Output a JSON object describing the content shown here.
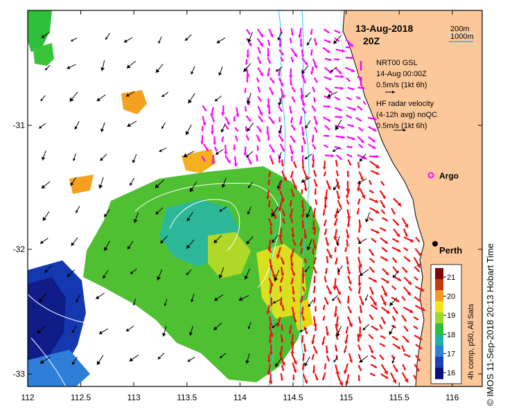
{
  "title": {
    "date": "13-Aug-2018",
    "time": "20Z"
  },
  "depth_legend": {
    "shallow": "200m",
    "deep": "1000m",
    "deep_color": "#20c0c0"
  },
  "glider_legend": {
    "line1": "NRT00 GSL",
    "line2": "14-Aug 00:00Z",
    "line3": "0.5m/s (1kt 6h)",
    "color": "#ff00ff"
  },
  "radar_legend": {
    "line1": "HF radar velocity",
    "line2": "(4-12h avg) noQC",
    "line3": "0.5m/s (1kt 6h)",
    "color": "#ff0000"
  },
  "argo": {
    "label": "Argo",
    "color": "#ff00ff"
  },
  "city": {
    "label": "Perth"
  },
  "colorbar": {
    "label": "4h comp, p50, All Sats",
    "ticks": [
      "21",
      "20",
      "19",
      "18",
      "17",
      "16"
    ],
    "colors": [
      "#7a0a0a",
      "#c43a10",
      "#f59a20",
      "#f4e41a",
      "#9ad82a",
      "#2fbf3a",
      "#20b0a0",
      "#2f7fd8",
      "#1f3fb8",
      "#0a0f7a"
    ]
  },
  "axes": {
    "x_ticks": [
      "112",
      "112.5",
      "113",
      "113.5",
      "114",
      "114.5",
      "115",
      "115.5",
      "116"
    ],
    "y_ticks": [
      "-31",
      "-32",
      "-33"
    ]
  },
  "copyright": "© IMOS 11-Sep-2018 20:13 Hobart Time",
  "colors": {
    "land": "#fcc89a",
    "isobath": "#20d0e0"
  }
}
